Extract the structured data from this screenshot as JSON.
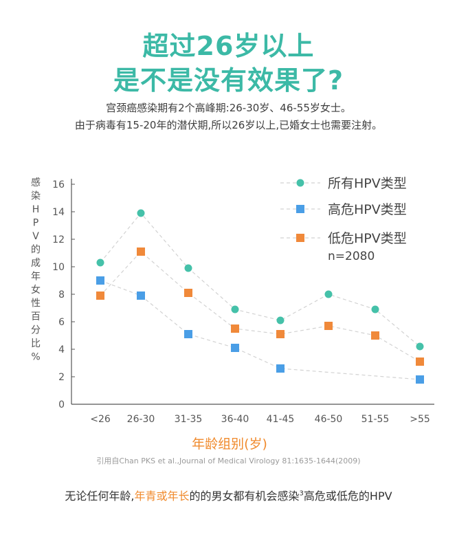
{
  "header": {
    "title_line1": "超过26岁以上",
    "title_line2": "是不是没有效果了?",
    "intro_line1": "宫颈癌感染期有2个高峰期:26-30岁、46-55岁女士。",
    "intro_line2": "由于病毒有15-20年的潜伏期,所以26岁以上,已婚女士也需要注射。"
  },
  "chart_data": {
    "type": "line",
    "title": "",
    "xlabel": "年龄组别(岁)",
    "ylabel": "感染HPV的成年女性百分比%",
    "categories": [
      "<26",
      "26-30",
      "31-35",
      "36-40",
      "41-45",
      "46-50",
      "51-55",
      ">55"
    ],
    "ylim": [
      0,
      16
    ],
    "yticks": [
      0,
      2,
      4,
      6,
      8,
      10,
      12,
      14,
      16
    ],
    "grid": false,
    "legend_position": "top-right",
    "legend_note": "n=2080",
    "series": [
      {
        "name": "所有HPV类型",
        "marker": "circle",
        "color": "#45c1a9",
        "values": [
          10.3,
          13.9,
          9.9,
          6.9,
          6.1,
          8.0,
          6.9,
          4.2
        ]
      },
      {
        "name": "高危HPV类型",
        "marker": "square",
        "color": "#4a9ee6",
        "values": [
          9.0,
          7.9,
          5.1,
          4.1,
          2.6,
          null,
          null,
          1.8
        ]
      },
      {
        "name": "低危HPV类型",
        "marker": "square",
        "color": "#f0893a",
        "values": [
          7.9,
          11.1,
          8.1,
          5.5,
          5.1,
          5.7,
          5.0,
          3.1
        ]
      }
    ]
  },
  "citation": "引用自Chan PKS et al.,Journal of Medical Virology 81:1635-1644(2009)",
  "footer": {
    "part1": "无论任何年龄,",
    "highlight": "年青或年长",
    "part2": "的的男女都有机会感染",
    "sup": "3",
    "part3": "高危或低危的HPV"
  }
}
